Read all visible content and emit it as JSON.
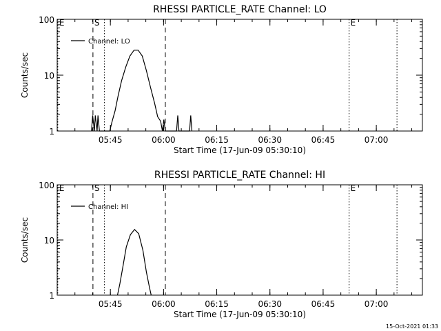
{
  "timestamp": "15-Oct-2021 01:33",
  "chart_data": [
    {
      "type": "line",
      "title": "RHESSI PARTICLE_RATE Channel: LO",
      "xlabel": "Start Time (17-Jun-09 05:30:10)",
      "ylabel": "Counts/sec",
      "yscale": "log",
      "ylim": [
        1,
        100
      ],
      "xlim": [
        "05:30",
        "07:13"
      ],
      "x_ticks": [
        "05:45",
        "06:00",
        "06:15",
        "06:30",
        "06:45",
        "07:00"
      ],
      "y_ticks": [
        "1",
        "10",
        "100"
      ],
      "legend": "top-left",
      "series": [
        {
          "name": "Channel: LO",
          "points": [
            [
              "05:39:40",
              1
            ],
            [
              "05:40:00",
              1.9
            ],
            [
              "05:40:30",
              1
            ],
            [
              "05:40:45",
              1.9
            ],
            [
              "05:41:15",
              1
            ],
            [
              "05:41:30",
              1.9
            ],
            [
              "05:41:55",
              1
            ],
            [
              "05:44:50",
              1
            ],
            [
              "05:45:30",
              1.5
            ],
            [
              "05:46:20",
              2.3
            ],
            [
              "05:47:10",
              4.2
            ],
            [
              "05:48:10",
              8
            ],
            [
              "05:49:20",
              14
            ],
            [
              "05:50:30",
              22
            ],
            [
              "05:51:40",
              28
            ],
            [
              "05:52:50",
              28
            ],
            [
              "05:54:00",
              22
            ],
            [
              "05:55:10",
              12
            ],
            [
              "05:56:20",
              6
            ],
            [
              "05:57:30",
              3.1
            ],
            [
              "05:58:20",
              1.8
            ],
            [
              "05:59:10",
              1.5
            ],
            [
              "05:59:40",
              1
            ],
            [
              "06:00:05",
              1.6
            ],
            [
              "06:00:30",
              1
            ],
            [
              "06:03:40",
              1
            ],
            [
              "06:04:00",
              1.9
            ],
            [
              "06:04:20",
              1
            ],
            [
              "06:07:20",
              1
            ],
            [
              "06:07:40",
              1.9
            ],
            [
              "06:08:00",
              1
            ]
          ]
        }
      ],
      "markers": [
        {
          "label": "E",
          "time": "05:30:10",
          "style": "dotted"
        },
        {
          "label": "S",
          "time": "05:40:05",
          "style": "dashed"
        },
        {
          "label": "",
          "time": "05:43:20",
          "style": "dotted"
        },
        {
          "label": "",
          "time": "06:00:30",
          "style": "dashed"
        },
        {
          "label": "E",
          "time": "06:52:20",
          "style": "dotted"
        },
        {
          "label": "",
          "time": "07:05:50",
          "style": "dotted"
        }
      ]
    },
    {
      "type": "line",
      "title": "RHESSI PARTICLE_RATE Channel: HI",
      "xlabel": "Start Time (17-Jun-09 05:30:10)",
      "ylabel": "Counts/sec",
      "yscale": "log",
      "ylim": [
        1,
        100
      ],
      "xlim": [
        "05:30",
        "07:13"
      ],
      "x_ticks": [
        "05:45",
        "06:00",
        "06:15",
        "06:30",
        "06:45",
        "07:00"
      ],
      "y_ticks": [
        "1",
        "10",
        "100"
      ],
      "legend": "top-left",
      "series": [
        {
          "name": "Channel: HI",
          "points": [
            [
              "05:47:00",
              1
            ],
            [
              "05:47:40",
              1.6
            ],
            [
              "05:48:30",
              3.2
            ],
            [
              "05:49:30",
              7.5
            ],
            [
              "05:50:40",
              12.5
            ],
            [
              "05:51:50",
              15.5
            ],
            [
              "05:53:00",
              13
            ],
            [
              "05:54:10",
              6.5
            ],
            [
              "05:55:10",
              2.6
            ],
            [
              "05:56:00",
              1.4
            ],
            [
              "05:56:30",
              1
            ]
          ]
        }
      ],
      "markers": [
        {
          "label": "E",
          "time": "05:30:10",
          "style": "dotted"
        },
        {
          "label": "S",
          "time": "05:40:05",
          "style": "dashed"
        },
        {
          "label": "",
          "time": "05:43:20",
          "style": "dotted"
        },
        {
          "label": "",
          "time": "06:00:30",
          "style": "dashed"
        },
        {
          "label": "E",
          "time": "06:52:20",
          "style": "dotted"
        },
        {
          "label": "",
          "time": "07:05:50",
          "style": "dotted"
        }
      ]
    }
  ]
}
